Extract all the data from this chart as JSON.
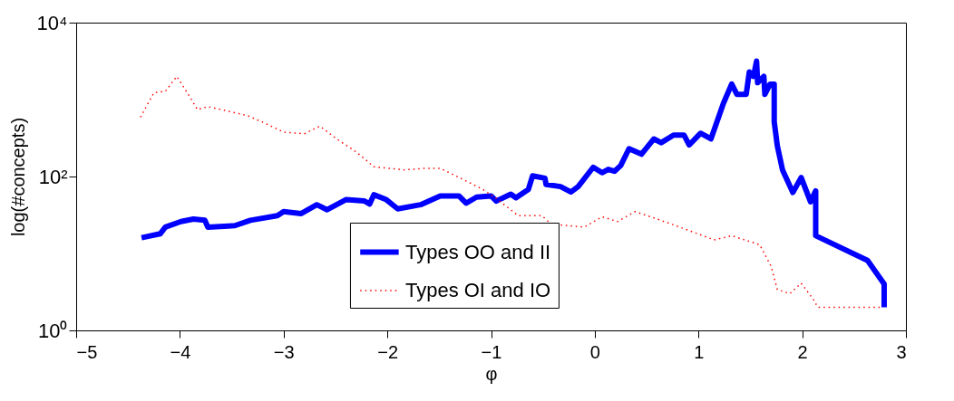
{
  "chart_data": {
    "type": "line",
    "xlabel": "φ",
    "ylabel": "log(#concepts)",
    "log": "y",
    "xlim": [
      -5,
      3
    ],
    "xticks": [
      -5,
      -4,
      -3,
      -2,
      -1,
      0,
      1,
      2,
      3
    ],
    "ylim": [
      1,
      10000
    ],
    "yticks": [
      {
        "value": 1,
        "label": "10⁰"
      },
      {
        "value": 100,
        "label": "10²"
      },
      {
        "value": 10000,
        "label": "10⁴"
      }
    ],
    "grid": false,
    "legend": "bottom",
    "series": [
      {
        "name": "Types OO and II",
        "color": "#0000ff",
        "line_style": "solid",
        "x": [
          -4.37,
          -4.19,
          -4.14,
          -3.99,
          -3.87,
          -3.76,
          -3.73,
          -3.47,
          -3.32,
          -3.06,
          -3.0,
          -2.83,
          -2.68,
          -2.58,
          -2.4,
          -2.22,
          -2.17,
          -2.13,
          -2.01,
          -1.9,
          -1.68,
          -1.49,
          -1.31,
          -1.24,
          -1.14,
          -1.0,
          -0.95,
          -0.81,
          -0.76,
          -0.64,
          -0.6,
          -0.48,
          -0.47,
          -0.33,
          -0.23,
          -0.16,
          -0.015,
          0.07,
          0.13,
          0.19,
          0.25,
          0.33,
          0.45,
          0.57,
          0.64,
          0.76,
          0.86,
          0.91,
          1.02,
          1.12,
          1.24,
          1.32,
          1.37,
          1.46,
          1.49,
          1.53,
          1.56,
          1.57,
          1.63,
          1.64,
          1.69,
          1.73,
          1.73,
          1.76,
          1.81,
          1.91,
          1.99,
          2.08,
          2.13,
          2.13,
          2.63,
          2.79,
          2.79
        ],
        "values": [
          16,
          18,
          22,
          26,
          28,
          27,
          22,
          23,
          27,
          31,
          35,
          33,
          43,
          37,
          50,
          48,
          44,
          58,
          50,
          38,
          43,
          56,
          56,
          45,
          54,
          56,
          48,
          59,
          53,
          68,
          102,
          95,
          79,
          74,
          63,
          74,
          132,
          112,
          124,
          117,
          139,
          230,
          195,
          308,
          275,
          346,
          346,
          257,
          365,
          308,
          890,
          1590,
          1170,
          1170,
          2290,
          2000,
          3160,
          1660,
          2000,
          1170,
          1590,
          1590,
          515,
          251,
          122,
          62,
          97,
          47,
          65,
          17,
          8.1,
          4,
          2
        ]
      },
      {
        "name": "Types OI and IO",
        "color": "#ff0000",
        "line_style": "dotted",
        "x": [
          -4.38,
          -4.25,
          -4.14,
          -4.03,
          -3.93,
          -3.83,
          -3.73,
          -3.35,
          -3.18,
          -3.0,
          -2.8,
          -2.65,
          -2.48,
          -2.3,
          -2.13,
          -1.84,
          -1.63,
          -1.49,
          -1.28,
          -1.08,
          -0.95,
          -0.74,
          -0.51,
          -0.42,
          -0.1,
          0.07,
          0.22,
          0.39,
          0.57,
          0.86,
          1.15,
          1.32,
          1.59,
          1.7,
          1.76,
          1.88,
          1.99,
          2.11,
          2.15,
          2.75
        ],
        "values": [
          590,
          1230,
          1280,
          2000,
          1230,
          740,
          810,
          620,
          494,
          377,
          360,
          452,
          302,
          209,
          134,
          122,
          128,
          128,
          93,
          68,
          52,
          31,
          31,
          24,
          22,
          30,
          26,
          35,
          29,
          21,
          15,
          17,
          13,
          6.8,
          3.4,
          3.0,
          4.1,
          2.5,
          2,
          2
        ]
      }
    ]
  }
}
